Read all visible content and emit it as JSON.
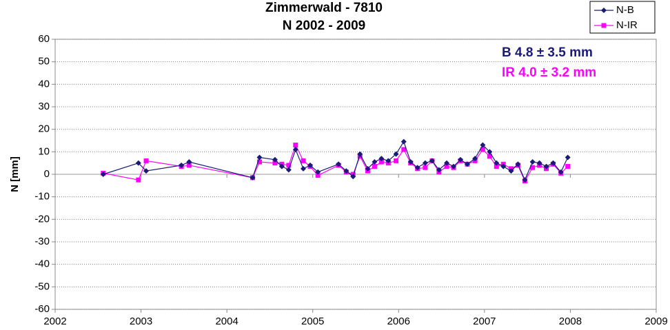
{
  "chart_data": {
    "type": "line",
    "title": "Zimmerwald - 7810",
    "subtitle": "N  2002 - 2009",
    "ylabel": "N [mm]",
    "x": [
      2002.56,
      2002.97,
      2003.06,
      2003.47,
      2003.56,
      2004.3,
      2004.38,
      2004.56,
      2004.64,
      2004.72,
      2004.8,
      2004.89,
      2004.97,
      2005.06,
      2005.3,
      2005.39,
      2005.47,
      2005.55,
      2005.64,
      2005.72,
      2005.8,
      2005.88,
      2005.97,
      2006.06,
      2006.14,
      2006.22,
      2006.31,
      2006.39,
      2006.47,
      2006.56,
      2006.64,
      2006.72,
      2006.8,
      2006.89,
      2006.98,
      2007.06,
      2007.14,
      2007.22,
      2007.31,
      2007.39,
      2007.47,
      2007.56,
      2007.64,
      2007.72,
      2007.8,
      2007.89,
      2007.97
    ],
    "series": [
      {
        "name": "N-B",
        "color": "#1a1a78",
        "marker": "diamond",
        "values": [
          0,
          5,
          1.5,
          4,
          5.5,
          -1.5,
          7.5,
          6.5,
          3.5,
          2,
          11,
          2.5,
          4,
          1,
          4.5,
          1.5,
          -1,
          9,
          2.5,
          5.5,
          7,
          6,
          9,
          14.5,
          5.5,
          3,
          5,
          6,
          2,
          5,
          3.5,
          6.5,
          4.5,
          7,
          13,
          10,
          5,
          3.5,
          1.5,
          4.5,
          -2.5,
          5.5,
          5,
          3.5,
          5,
          1,
          7.5
        ]
      },
      {
        "name": "N-IR",
        "color": "#ff00ff",
        "marker": "square",
        "values": [
          0.5,
          -2.5,
          6,
          3.5,
          4,
          -1.5,
          5.5,
          5,
          4.5,
          4,
          13,
          6,
          3.5,
          -0.5,
          4,
          1,
          0,
          8,
          1.5,
          3.5,
          5.5,
          5,
          6,
          11,
          5,
          2.5,
          3,
          6,
          1,
          3.5,
          3,
          6,
          4.5,
          6,
          11,
          8,
          3.5,
          4.5,
          2.5,
          4,
          -3,
          3,
          4,
          2.5,
          4.5,
          0.5,
          3.5
        ]
      }
    ],
    "annotations": [
      {
        "text": "B 4.8 ± 3.5 mm",
        "color": "#1a1a78"
      },
      {
        "text": "IR 4.0 ± 3.2 mm",
        "color": "#ff00ff"
      }
    ],
    "xlim": [
      2002,
      2009
    ],
    "xticks": [
      2002,
      2003,
      2004,
      2005,
      2006,
      2007,
      2008,
      2009
    ],
    "ylim": [
      -60,
      60
    ],
    "yticks": [
      -60,
      -50,
      -40,
      -30,
      -20,
      -10,
      0,
      10,
      20,
      30,
      40,
      50,
      60
    ],
    "grid": true,
    "legend": "upper right"
  }
}
